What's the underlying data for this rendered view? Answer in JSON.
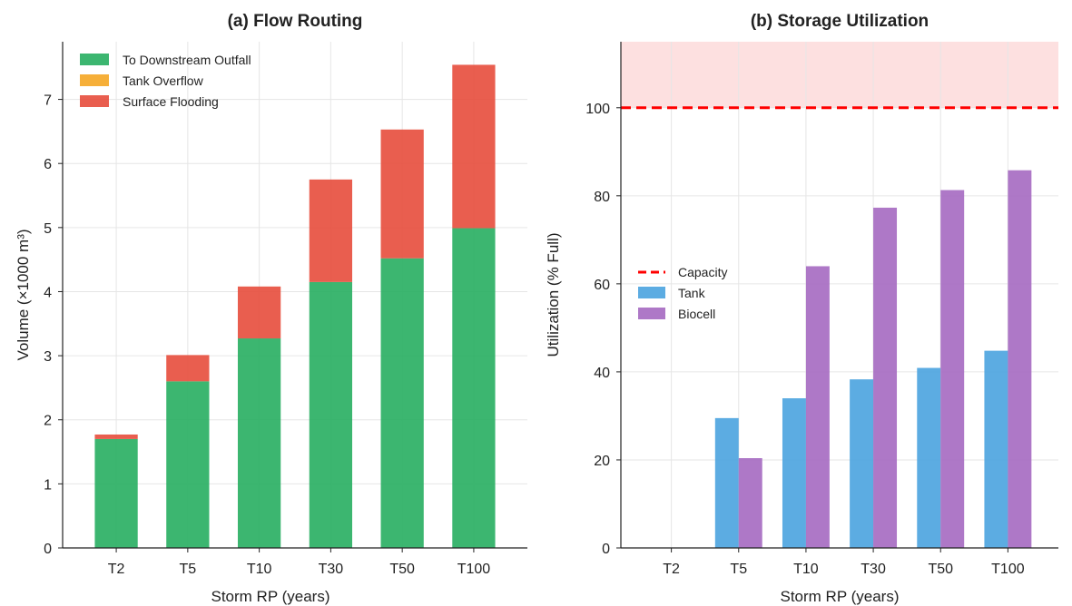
{
  "chart_data": [
    {
      "type": "bar",
      "stacked": true,
      "title": "(a) Flow Routing",
      "xlabel": "Storm RP (years)",
      "ylabel": "Volume (×1000 m³)",
      "categories": [
        "T2",
        "T5",
        "T10",
        "T30",
        "T50",
        "T100"
      ],
      "ylim": [
        0,
        7.9
      ],
      "yticks": [
        "0",
        "1",
        "2",
        "3",
        "4",
        "5",
        "6",
        "7"
      ],
      "grid": true,
      "legend_position": "top-left",
      "series": [
        {
          "name": "To Downstream Outfall",
          "color": "#27ae60",
          "values": [
            1.7,
            2.6,
            3.27,
            4.15,
            4.52,
            4.99
          ]
        },
        {
          "name": "Tank Overflow",
          "color": "#f5a623",
          "values": [
            0,
            0,
            0,
            0,
            0,
            0
          ]
        },
        {
          "name": "Surface Flooding",
          "color": "#e74c3c",
          "values": [
            0.07,
            0.41,
            0.81,
            1.6,
            2.01,
            2.55
          ]
        }
      ]
    },
    {
      "type": "bar",
      "stacked": false,
      "title": "(b) Storage Utilization",
      "xlabel": "Storm RP (years)",
      "ylabel": "Utilization (% Full)",
      "categories": [
        "T2",
        "T5",
        "T10",
        "T30",
        "T50",
        "T100"
      ],
      "ylim": [
        0,
        115
      ],
      "yticks": [
        "0",
        "20",
        "40",
        "60",
        "80",
        "100"
      ],
      "grid": true,
      "legend_position": "center-left",
      "capacity": {
        "name": "Capacity",
        "value": 100,
        "color": "#ff0000"
      },
      "overflow_band_color": "#fde0e0",
      "series": [
        {
          "name": "Tank",
          "color": "#4aa3df",
          "values": [
            0,
            29.5,
            34.0,
            38.3,
            40.9,
            44.8
          ]
        },
        {
          "name": "Biocell",
          "color": "#a569c1",
          "values": [
            0,
            20.4,
            64.0,
            77.3,
            81.3,
            85.8
          ]
        }
      ]
    }
  ]
}
